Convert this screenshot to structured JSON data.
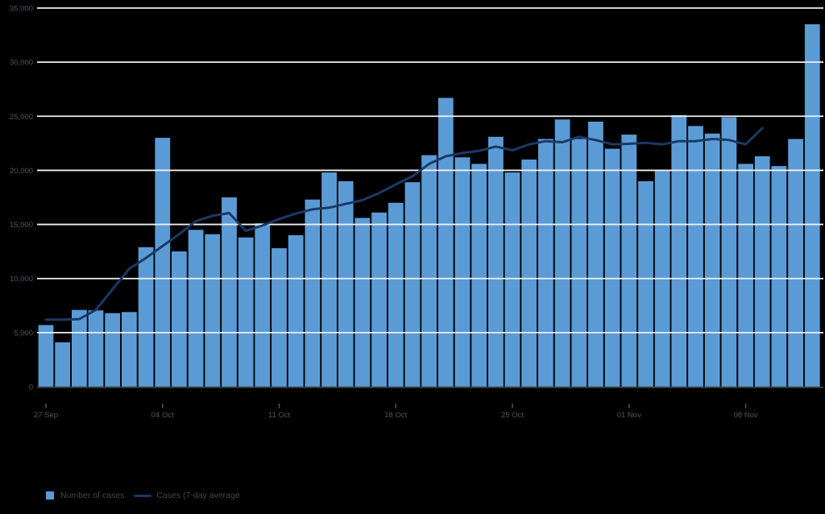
{
  "page": {
    "background": "#000000"
  },
  "legend": {
    "bar_label": "Number of cases",
    "line_label": "Cases (7-day average"
  },
  "chart_data": {
    "type": "bar",
    "title": "",
    "xlabel": "",
    "ylabel": "",
    "ylim": [
      0,
      35000
    ],
    "grid": true,
    "legend_position": "bottom-left",
    "background_color": "#000000",
    "gridline_color": "#f0f0f0",
    "axis_line_color": "#3b4046",
    "axis_label_color": "#4d5761",
    "legend_text_color": "#474747",
    "x": [
      "27 Sep",
      "28 Sep",
      "29 Sep",
      "30 Sep",
      "01 Oct",
      "02 Oct",
      "03 Oct",
      "04 Oct",
      "05 Oct",
      "06 Oct",
      "07 Oct",
      "08 Oct",
      "09 Oct",
      "10 Oct",
      "11 Oct",
      "12 Oct",
      "13 Oct",
      "14 Oct",
      "15 Oct",
      "16 Oct",
      "17 Oct",
      "18 Oct",
      "19 Oct",
      "20 Oct",
      "21 Oct",
      "22 Oct",
      "23 Oct",
      "24 Oct",
      "25 Oct",
      "26 Oct",
      "27 Oct",
      "28 Oct",
      "29 Oct",
      "30 Oct",
      "31 Oct",
      "01 Nov",
      "02 Nov",
      "03 Nov",
      "04 Nov",
      "05 Nov",
      "06 Nov",
      "07 Nov",
      "08 Nov",
      "09 Nov",
      "10 Nov",
      "11 Nov",
      "12 Nov"
    ],
    "series": [
      {
        "name": "Number of cases",
        "type": "bar",
        "color": "#5b9bd5",
        "values": [
          5700,
          4100,
          7100,
          7050,
          6800,
          6900,
          12900,
          23000,
          12500,
          14500,
          14100,
          17500,
          13800,
          15100,
          12800,
          14000,
          17300,
          19800,
          19000,
          15600,
          16100,
          17000,
          18900,
          21400,
          26700,
          21200,
          20600,
          23100,
          19800,
          21000,
          22900,
          24700,
          22900,
          24500,
          22000,
          23300,
          19000,
          20000,
          25100,
          24100,
          23400,
          24900,
          20600,
          21300,
          20400,
          22900,
          33500
        ]
      },
      {
        "name": "Cases (7-day average",
        "type": "line",
        "color": "#1a3a66",
        "values": [
          6200,
          6200,
          6250,
          7100,
          9000,
          10900,
          11900,
          13000,
          14100,
          15300,
          15800,
          16050,
          14400,
          14900,
          15500,
          16000,
          16400,
          16550,
          16900,
          17250,
          17900,
          18700,
          19450,
          20600,
          21300,
          21600,
          21800,
          22200,
          21850,
          22400,
          22700,
          22600,
          23100,
          22800,
          22400,
          22450,
          22550,
          22400,
          22700,
          22700,
          22900,
          22800,
          22400,
          23900,
          null,
          null,
          null
        ]
      }
    ],
    "yticks": [
      {
        "value": 0,
        "label": "0"
      },
      {
        "value": 5000,
        "label": "5,000"
      },
      {
        "value": 10000,
        "label": "10,000"
      },
      {
        "value": 15000,
        "label": "15,000"
      },
      {
        "value": 20000,
        "label": "20,000"
      },
      {
        "value": 25000,
        "label": "25,000"
      },
      {
        "value": 30000,
        "label": "30,000"
      },
      {
        "value": 35000,
        "label": "35,000"
      }
    ],
    "xticks": [
      {
        "index": 0,
        "label": "27 Sep"
      },
      {
        "index": 7,
        "label": "04 Oct"
      },
      {
        "index": 14,
        "label": "11 Oct"
      },
      {
        "index": 21,
        "label": "18 Oct"
      },
      {
        "index": 28,
        "label": "25 Oct"
      },
      {
        "index": 35,
        "label": "01 Nov"
      },
      {
        "index": 42,
        "label": "08 Nov"
      }
    ]
  }
}
